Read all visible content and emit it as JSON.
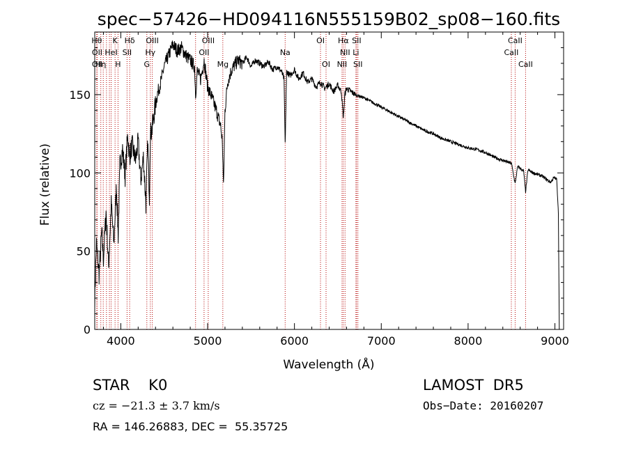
{
  "chart_data": {
    "type": "line",
    "title": "spec−57426−HD094116N555159B02_sp08−160.fits",
    "xlabel": "Wavelength (Å)",
    "ylabel": "Flux (relative)",
    "xlim": [
      3700,
      9100
    ],
    "ylim": [
      0,
      190
    ],
    "xticks": [
      4000,
      5000,
      6000,
      7000,
      8000,
      9000
    ],
    "yticks": [
      0,
      50,
      100,
      150
    ],
    "grid": false,
    "series": [
      {
        "x": [
          3700,
          3720,
          3750,
          3780,
          3800,
          3830,
          3860,
          3890,
          3920,
          3950,
          3970,
          3990,
          4020,
          4050,
          4080,
          4100,
          4130,
          4170,
          4200,
          4230,
          4260,
          4290,
          4310,
          4330,
          4340,
          4360,
          4390,
          4420,
          4460,
          4500,
          4550,
          4600,
          4650,
          4700,
          4750,
          4800,
          4850,
          4861,
          4880,
          4920,
          4960,
          5000,
          5050,
          5100,
          5150,
          5170,
          5183,
          5200,
          5230,
          5270,
          5300,
          5350,
          5400,
          5450,
          5500,
          5550,
          5600,
          5650,
          5700,
          5750,
          5800,
          5850,
          5880,
          5893,
          5910,
          5950,
          6000,
          6050,
          6100,
          6150,
          6200,
          6250,
          6300,
          6350,
          6400,
          6450,
          6500,
          6540,
          6563,
          6580,
          6600,
          6650,
          6700,
          6750,
          6800,
          6900,
          7000,
          7100,
          7200,
          7300,
          7400,
          7500,
          7600,
          7700,
          7800,
          7900,
          8000,
          8100,
          8200,
          8300,
          8400,
          8500,
          8542,
          8570,
          8600,
          8640,
          8662,
          8690,
          8750,
          8800,
          8850,
          8900,
          8950,
          8990,
          9020,
          9040,
          9050
        ],
        "y": [
          20,
          55,
          35,
          62,
          45,
          75,
          40,
          80,
          55,
          92,
          60,
          105,
          115,
          98,
          125,
          110,
          118,
          108,
          120,
          95,
          110,
          80,
          120,
          85,
          125,
          128,
          140,
          150,
          158,
          168,
          175,
          182,
          178,
          180,
          175,
          172,
          168,
          150,
          165,
          160,
          172,
          155,
          148,
          140,
          130,
          120,
          90,
          140,
          158,
          165,
          168,
          172,
          170,
          174,
          168,
          172,
          170,
          168,
          171,
          166,
          168,
          165,
          160,
          118,
          165,
          162,
          166,
          160,
          164,
          158,
          160,
          155,
          158,
          154,
          157,
          152,
          156,
          152,
          135,
          150,
          154,
          152,
          150,
          149,
          148,
          145,
          142,
          139,
          136,
          133,
          130,
          127,
          125,
          122,
          120,
          118,
          116,
          115,
          113,
          110,
          108,
          106,
          93,
          104,
          103,
          101,
          88,
          102,
          100,
          99,
          98,
          96,
          94,
          97,
          96,
          75,
          0
        ]
      }
    ],
    "lines": [
      {
        "x": 3723,
        "labels": [
          "Hθ",
          "",
          ""
        ]
      },
      {
        "x": 3728,
        "labels": [
          "",
          "OII",
          "OII"
        ]
      },
      {
        "x": 3770,
        "labels": [
          "",
          "",
          "Hη"
        ]
      },
      {
        "x": 3798,
        "labels": [
          "",
          "",
          ""
        ]
      },
      {
        "x": 3835,
        "labels": [
          "",
          "",
          ""
        ]
      },
      {
        "x": 3869,
        "labels": [
          "",
          "",
          ""
        ]
      },
      {
        "x": 3889,
        "labels": [
          "",
          "HeI",
          ""
        ]
      },
      {
        "x": 3934,
        "labels": [
          "K",
          "",
          ""
        ]
      },
      {
        "x": 3968,
        "labels": [
          "",
          "",
          "H"
        ]
      },
      {
        "x": 4072,
        "labels": [
          "",
          "SII",
          ""
        ]
      },
      {
        "x": 4102,
        "labels": [
          "Hδ",
          "",
          ""
        ]
      },
      {
        "x": 4300,
        "labels": [
          "",
          "",
          "G"
        ]
      },
      {
        "x": 4340,
        "labels": [
          "",
          "Hγ",
          ""
        ]
      },
      {
        "x": 4363,
        "labels": [
          "OIII",
          "",
          ""
        ]
      },
      {
        "x": 4861,
        "labels": [
          "",
          "",
          ""
        ]
      },
      {
        "x": 4959,
        "labels": [
          "",
          "OII",
          ""
        ]
      },
      {
        "x": 5007,
        "labels": [
          "OIII",
          "",
          ""
        ]
      },
      {
        "x": 5175,
        "labels": [
          "",
          "",
          "Mg"
        ]
      },
      {
        "x": 5893,
        "labels": [
          "",
          "Na",
          ""
        ]
      },
      {
        "x": 6300,
        "labels": [
          "OI",
          "",
          ""
        ]
      },
      {
        "x": 6364,
        "labels": [
          "",
          "",
          "OI"
        ]
      },
      {
        "x": 6548,
        "labels": [
          "",
          "",
          "NII"
        ]
      },
      {
        "x": 6563,
        "labels": [
          "Hα",
          "",
          ""
        ]
      },
      {
        "x": 6583,
        "labels": [
          "",
          "NII",
          ""
        ]
      },
      {
        "x": 6716,
        "labels": [
          "SII",
          "",
          ""
        ]
      },
      {
        "x": 6708,
        "labels": [
          "",
          "Li",
          ""
        ]
      },
      {
        "x": 6731,
        "labels": [
          "",
          "",
          "SII"
        ]
      },
      {
        "x": 8498,
        "labels": [
          "",
          "CaII",
          ""
        ]
      },
      {
        "x": 8542,
        "labels": [
          "CaII",
          "",
          ""
        ]
      },
      {
        "x": 8662,
        "labels": [
          "",
          "",
          "CaII"
        ]
      }
    ]
  },
  "info": {
    "class": "STAR    K0",
    "survey": "LAMOST  DR5",
    "cz": "cz = −21.3 ± 3.7 km/s",
    "obs_date": "Obs−Date: 20160207",
    "coords": "RA = 146.26883, DEC =  55.35725"
  },
  "colors": {
    "spectrum": "#000000",
    "line_markers": "#b40000",
    "axes": "#000000"
  }
}
